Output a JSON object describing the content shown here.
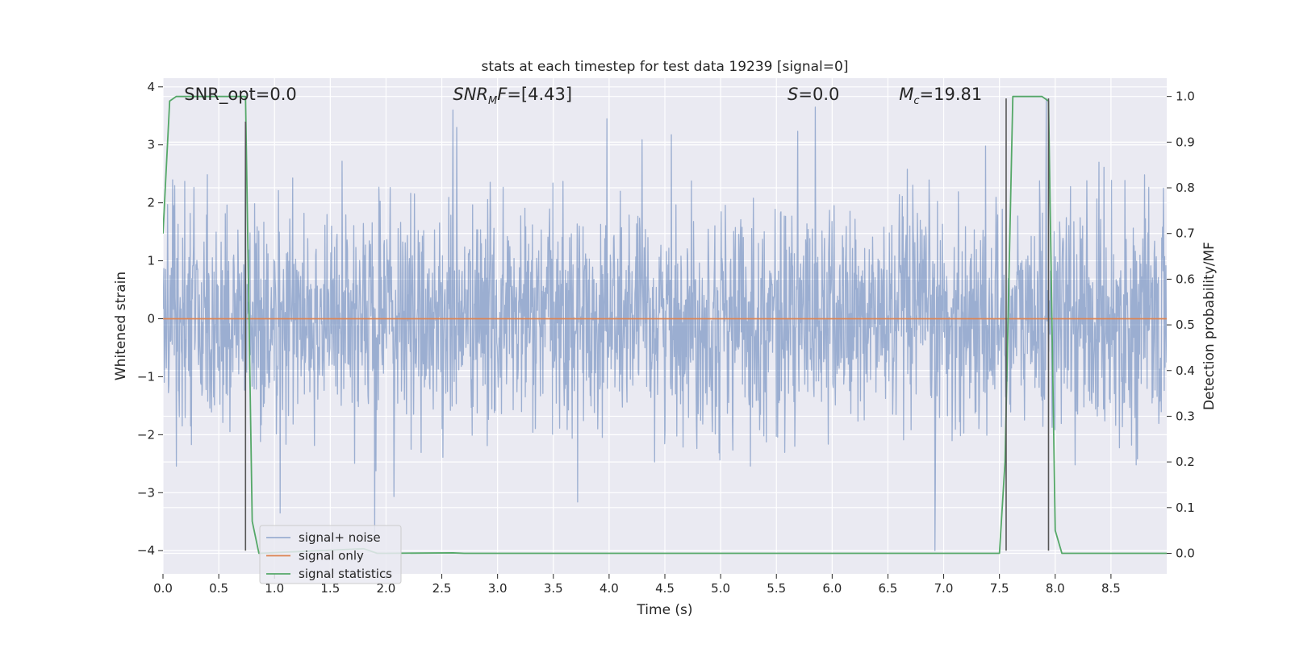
{
  "chart_data": {
    "type": "line",
    "title": "stats at each timestep for test data 19239 [signal=0]",
    "xlabel": "Time (s)",
    "ylabel_left": "Whitened strain",
    "ylabel_right": "Detection probability/MF",
    "xlim": [
      0.0,
      9.0
    ],
    "ylim_left": [
      -4.4,
      4.15
    ],
    "ylim_right": [
      -0.045,
      1.04
    ],
    "x_ticks": [
      0.0,
      0.5,
      1.0,
      1.5,
      2.0,
      2.5,
      3.0,
      3.5,
      4.0,
      4.5,
      5.0,
      5.5,
      6.0,
      6.5,
      7.0,
      7.5,
      8.0,
      8.5
    ],
    "x_tick_labels": [
      "0.0",
      "0.5",
      "1.0",
      "1.5",
      "2.0",
      "2.5",
      "3.0",
      "3.5",
      "4.0",
      "4.5",
      "5.0",
      "5.5",
      "6.0",
      "6.5",
      "7.0",
      "7.5",
      "8.0",
      "8.5"
    ],
    "y_left_ticks": [
      -4,
      -3,
      -2,
      -1,
      0,
      1,
      2,
      3,
      4
    ],
    "y_left_tick_labels": [
      "−4",
      "−3",
      "−2",
      "−1",
      "0",
      "1",
      "2",
      "3",
      "4"
    ],
    "y_right_ticks": [
      0.0,
      0.1,
      0.2,
      0.3,
      0.4,
      0.5,
      0.6,
      0.7,
      0.8,
      0.9,
      1.0
    ],
    "y_right_tick_labels": [
      "0.0",
      "0.1",
      "0.2",
      "0.3",
      "0.4",
      "0.5",
      "0.6",
      "0.7",
      "0.8",
      "0.9",
      "1.0"
    ],
    "grid": true,
    "legend_position": "lower-left",
    "annotations": [
      {
        "html": "SNR_opt=0.0",
        "x": 0.19
      },
      {
        "html": "<tspan font-style='italic'>SNR</tspan><tspan font-style='italic' font-size='13' dy='5'>M</tspan><tspan font-style='italic' dy='-5'>F</tspan>=[4.43]",
        "x": 2.6
      },
      {
        "html": "<tspan font-style='italic'>S</tspan>=0.0",
        "x": 5.6
      },
      {
        "html": "<tspan font-style='italic'>M</tspan><tspan font-style='italic' font-size='13' dy='5'>c</tspan><tspan dy='-5'>=19.81</tspan>",
        "x": 6.6
      }
    ],
    "series": [
      {
        "name": "signal+ noise",
        "color": "#4c72b0",
        "opacity": 0.5,
        "axis": "left",
        "render": "noise-trace",
        "duration": 9.0,
        "samples": 2400,
        "noise_std": 1.0,
        "envelope_typical": [
          -1.65,
          1.7
        ],
        "extremes": [
          {
            "x": 0.74,
            "y": 3.4
          },
          {
            "x": 1.05,
            "y": -3.35
          },
          {
            "x": 1.9,
            "y": -3.7
          },
          {
            "x": 2.6,
            "y": 3.6
          },
          {
            "x": 3.98,
            "y": 3.45
          },
          {
            "x": 5.85,
            "y": 3.65
          },
          {
            "x": 6.92,
            "y": -4.0
          },
          {
            "x": 7.92,
            "y": 3.8
          }
        ]
      },
      {
        "name": "signal only",
        "color": "#dd8452",
        "axis": "left",
        "x": [
          0.0,
          9.0
        ],
        "y": [
          0.0,
          0.0
        ]
      },
      {
        "name": "signal statistics",
        "color": "#55a868",
        "axis": "right",
        "x": [
          0.0,
          0.06,
          0.12,
          0.6,
          0.74,
          0.8,
          0.86,
          1.8,
          1.92,
          2.0,
          2.6,
          2.7,
          7.5,
          7.55,
          7.62,
          7.88,
          7.94,
          8.0,
          8.06,
          9.0
        ],
        "y": [
          0.7,
          0.99,
          1.0,
          1.0,
          1.0,
          0.07,
          0.0,
          0.01,
          0.0,
          0.0,
          0.001,
          0.0,
          0.0,
          0.2,
          1.0,
          1.0,
          0.99,
          0.05,
          0.0,
          0.0
        ]
      }
    ],
    "vertical_markers": [
      {
        "x": 0.74,
        "y0": -4.0,
        "y1": 3.4,
        "color": "#555555"
      },
      {
        "x": 7.56,
        "y0": -4.0,
        "y1": 3.8,
        "color": "#555555"
      },
      {
        "x": 7.94,
        "y0": -4.0,
        "y1": 3.8,
        "color": "#555555"
      }
    ]
  }
}
